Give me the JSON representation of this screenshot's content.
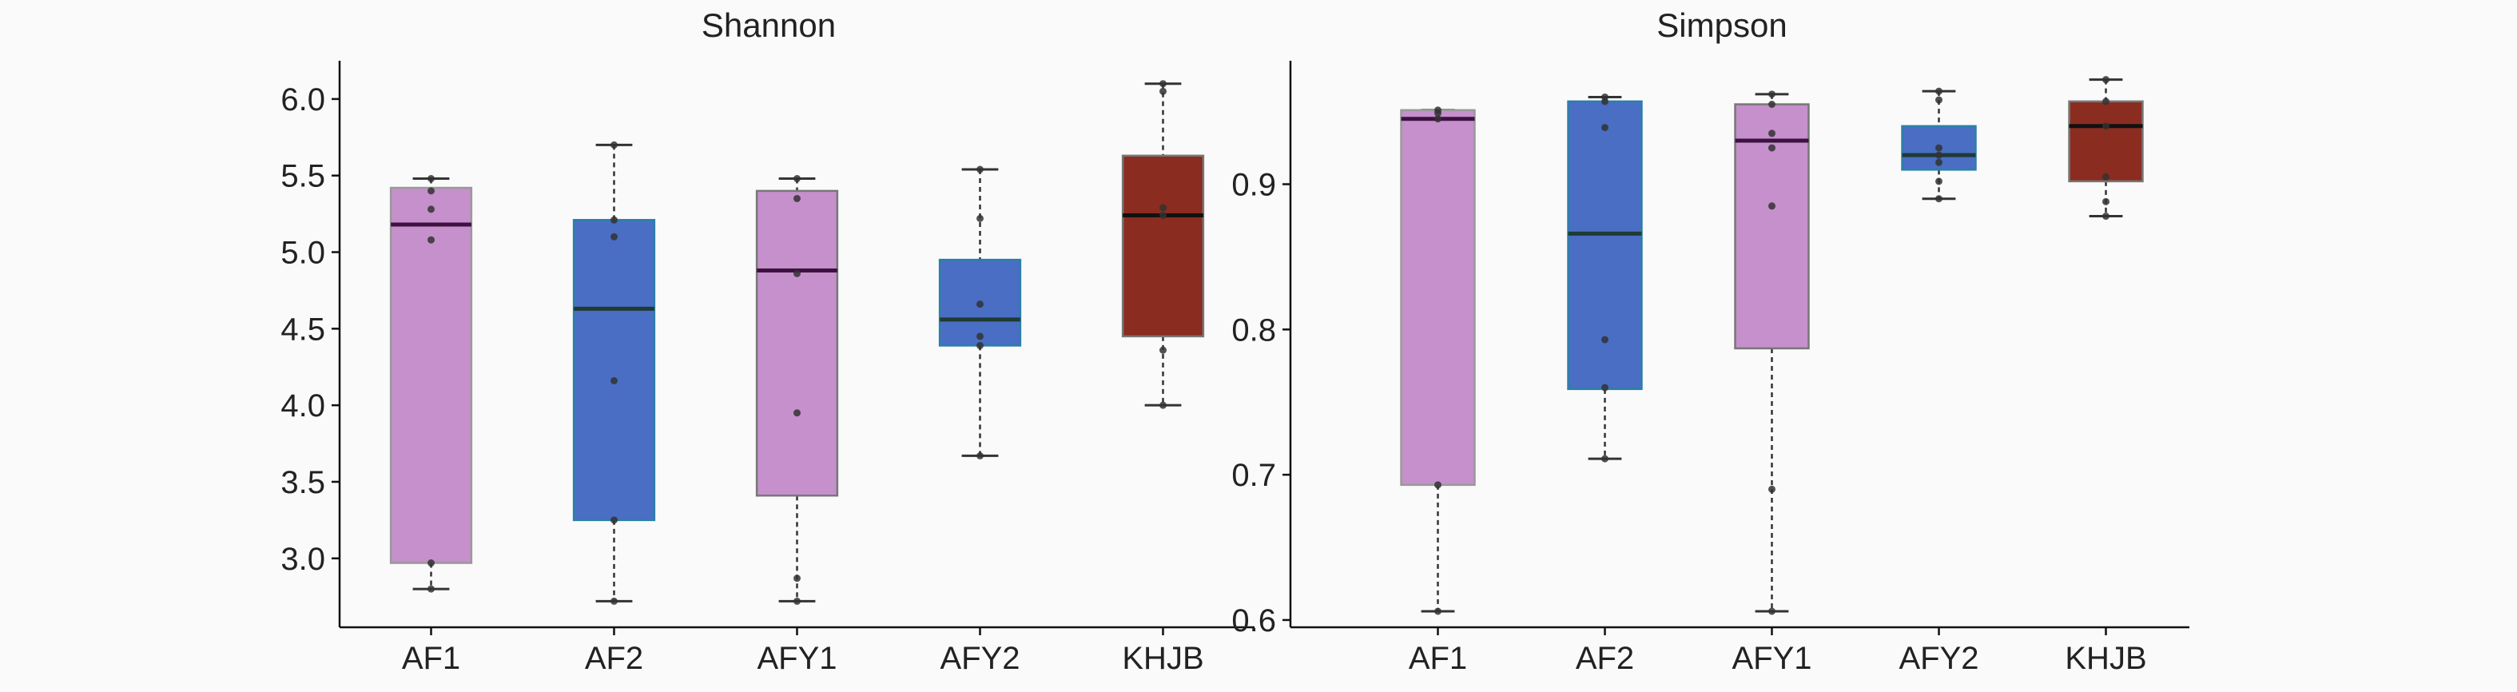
{
  "chart_data": [
    {
      "type": "box",
      "title": "Shannon",
      "xlabel": "",
      "ylabel": "",
      "ylim": [
        2.55,
        6.25
      ],
      "yticks": [
        3.0,
        3.5,
        4.0,
        4.5,
        5.0,
        5.5,
        6.0
      ],
      "ytick_labels": [
        "3.0",
        "3.5",
        "4.0",
        "4.5",
        "5.0",
        "5.5",
        "6.0"
      ],
      "categories": [
        "AF1",
        "AF2",
        "AFY1",
        "AFY2",
        "KHJB"
      ],
      "boxes": [
        {
          "category": "AF1",
          "whisker_low": 2.8,
          "q1": 2.97,
          "median": 5.18,
          "q3": 5.42,
          "whisker_high": 5.48,
          "points": [
            2.8,
            2.97,
            5.08,
            5.28,
            5.4,
            5.48
          ]
        },
        {
          "category": "AF2",
          "whisker_low": 2.72,
          "q1": 3.25,
          "median": 4.63,
          "q3": 5.21,
          "whisker_high": 5.7,
          "points": [
            2.72,
            3.25,
            4.16,
            5.1,
            5.21,
            5.7
          ]
        },
        {
          "category": "AFY1",
          "whisker_low": 2.72,
          "q1": 3.41,
          "median": 4.88,
          "q3": 5.4,
          "whisker_high": 5.48,
          "points": [
            2.72,
            2.87,
            3.95,
            4.86,
            5.35,
            5.48
          ]
        },
        {
          "category": "AFY2",
          "whisker_low": 3.67,
          "q1": 4.39,
          "median": 4.56,
          "q3": 4.95,
          "whisker_high": 5.54,
          "points": [
            3.67,
            4.39,
            4.45,
            4.66,
            5.22,
            5.54
          ]
        },
        {
          "category": "KHJB",
          "whisker_low": 4.0,
          "q1": 4.45,
          "median": 5.24,
          "q3": 5.63,
          "whisker_high": 6.1,
          "points": [
            4.0,
            4.36,
            5.24,
            5.29,
            6.05,
            6.1
          ]
        }
      ],
      "colors": [
        "#c590cc",
        "#4a6ec4",
        "#c590cc",
        "#4a6ec4",
        "#8b2c20"
      ],
      "border_colors": [
        "#999999",
        "#2a80a8",
        "#777777",
        "#2a80a8",
        "#777777"
      ],
      "median_colors": [
        "#3d1240",
        "#1f3b33",
        "#3d1240",
        "#1f3b33",
        "#111111"
      ],
      "grid": false
    },
    {
      "type": "box",
      "title": "Simpson",
      "xlabel": "",
      "ylabel": "",
      "ylim": [
        0.595,
        0.985
      ],
      "yticks": [
        0.6,
        0.7,
        0.8,
        0.9
      ],
      "ytick_labels": [
        "0.6",
        "0.7",
        "0.8",
        "0.9"
      ],
      "categories": [
        "AF1",
        "AF2",
        "AFY1",
        "AFY2",
        "KHJB"
      ],
      "boxes": [
        {
          "category": "AF1",
          "whisker_low": 0.606,
          "q1": 0.693,
          "median": 0.945,
          "q3": 0.951,
          "whisker_high": 0.951,
          "points": [
            0.606,
            0.693,
            0.945,
            0.949,
            0.951
          ]
        },
        {
          "category": "AF2",
          "whisker_low": 0.711,
          "q1": 0.759,
          "median": 0.866,
          "q3": 0.957,
          "whisker_high": 0.96,
          "points": [
            0.711,
            0.76,
            0.793,
            0.939,
            0.957,
            0.96
          ]
        },
        {
          "category": "AFY1",
          "whisker_low": 0.606,
          "q1": 0.787,
          "median": 0.93,
          "q3": 0.955,
          "whisker_high": 0.962,
          "points": [
            0.606,
            0.69,
            0.885,
            0.925,
            0.935,
            0.955,
            0.962
          ]
        },
        {
          "category": "AFY2",
          "whisker_low": 0.89,
          "q1": 0.91,
          "median": 0.92,
          "q3": 0.94,
          "whisker_high": 0.964,
          "points": [
            0.89,
            0.902,
            0.915,
            0.92,
            0.925,
            0.958,
            0.964
          ]
        },
        {
          "category": "KHJB",
          "whisker_low": 0.878,
          "q1": 0.902,
          "median": 0.94,
          "q3": 0.957,
          "whisker_high": 0.972,
          "points": [
            0.878,
            0.888,
            0.905,
            0.94,
            0.957,
            0.972
          ]
        }
      ],
      "colors": [
        "#c590cc",
        "#4a6ec4",
        "#c590cc",
        "#4a6ec4",
        "#8b2c20"
      ],
      "border_colors": [
        "#999999",
        "#2a80a8",
        "#777777",
        "#2a80a8",
        "#777777"
      ],
      "median_colors": [
        "#3d1240",
        "#1f3b33",
        "#3d1240",
        "#1f3b33",
        "#111111"
      ],
      "grid": false
    }
  ]
}
